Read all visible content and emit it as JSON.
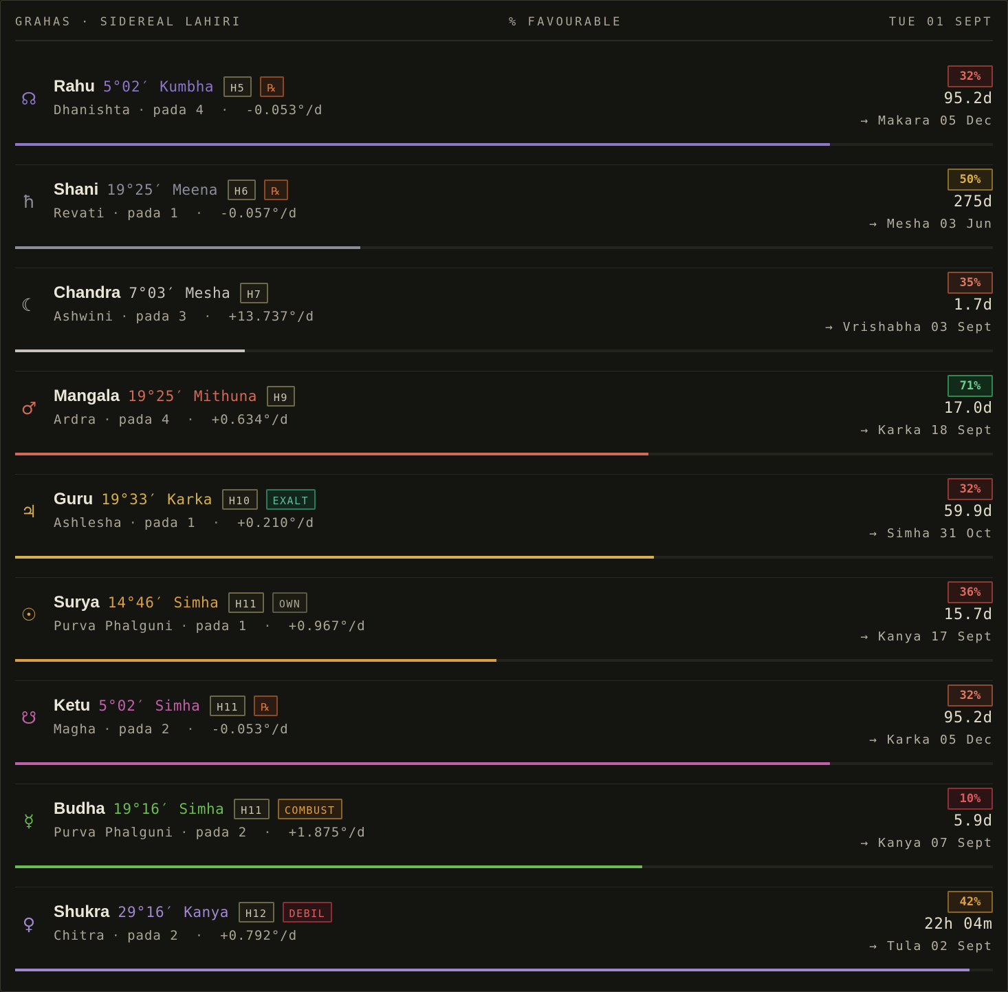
{
  "header": {
    "left": "GRAHAS · SIDEREAL LAHIRI",
    "middle": "% FAVOURABLE",
    "right": "TUE 01 SEPT"
  },
  "grahas": [
    {
      "name": "Rahu",
      "glyph": "☊",
      "color": "#8c76c8",
      "degree": "5°02′",
      "sign": "Kumbha",
      "house": "H5",
      "flag": {
        "label": "℞",
        "color": "#e07a3a",
        "bg": "#2a1c12",
        "border": "#8a4a24"
      },
      "nakshatra": "Dhanishta",
      "pada": "pada 4",
      "speed": "-0.053°/d",
      "pct_label": "32%",
      "pct_color": "#e06a5c",
      "pct_bg": "#2c1614",
      "pct_border": "#8e3a30",
      "duration": "95.2d",
      "next": "→ Makara 05 Dec",
      "progress": 0.833
    },
    {
      "name": "Shani",
      "glyph": "ħ",
      "color": "#8a8d98",
      "degree": "19°25′",
      "sign": "Meena",
      "house": "H6",
      "flag": {
        "label": "℞",
        "color": "#e07a3a",
        "bg": "#2a1c12",
        "border": "#8a4a24"
      },
      "nakshatra": "Revati",
      "pada": "pada 1",
      "speed": "-0.057°/d",
      "pct_label": "50%",
      "pct_color": "#e0b040",
      "pct_bg": "#2a2210",
      "pct_border": "#8a6e22",
      "duration": "275d",
      "next": "→ Mesha 03 Jun",
      "progress": 0.353
    },
    {
      "name": "Chandra",
      "glyph": "☾",
      "color": "#c6c4bc",
      "degree": "7°03′",
      "sign": "Mesha",
      "house": "H7",
      "flag": null,
      "nakshatra": "Ashwini",
      "pada": "pada 3",
      "speed": "+13.737°/d",
      "pct_label": "35%",
      "pct_color": "#e07a5c",
      "pct_bg": "#2c1a14",
      "pct_border": "#8e4a30",
      "duration": "1.7d",
      "next": "→ Vrishabha 03 Sept",
      "progress": 0.235
    },
    {
      "name": "Mangala",
      "glyph": "♂",
      "color": "#d26a56",
      "degree": "19°25′",
      "sign": "Mithuna",
      "house": "H9",
      "flag": null,
      "nakshatra": "Ardra",
      "pada": "pada 4",
      "speed": "+0.634°/d",
      "pct_label": "71%",
      "pct_color": "#6cd08c",
      "pct_bg": "#122a1a",
      "pct_border": "#2e8a4c",
      "duration": "17.0d",
      "next": "→ Karka 18 Sept",
      "progress": 0.648
    },
    {
      "name": "Guru",
      "glyph": "♃",
      "color": "#d6b04a",
      "degree": "19°33′",
      "sign": "Karka",
      "house": "H10",
      "flag": {
        "label": "EXALT",
        "color": "#5cc09a",
        "bg": "#12261e",
        "border": "#2c7a5c"
      },
      "nakshatra": "Ashlesha",
      "pada": "pada 1",
      "speed": "+0.210°/d",
      "pct_label": "32%",
      "pct_color": "#e06a5c",
      "pct_bg": "#2c1614",
      "pct_border": "#8e3a30",
      "duration": "59.9d",
      "next": "→ Simha 31 Oct",
      "progress": 0.653
    },
    {
      "name": "Surya",
      "glyph": "☉",
      "color": "#d8a040",
      "degree": "14°46′",
      "sign": "Simha",
      "house": "H11",
      "flag": {
        "label": "OWN",
        "color": "#a8a690",
        "bg": "#1c1c15",
        "border": "#5a5a44"
      },
      "nakshatra": "Purva Phalguni",
      "pada": "pada 1",
      "speed": "+0.967°/d",
      "pct_label": "36%",
      "pct_color": "#e06a5c",
      "pct_bg": "#2c1614",
      "pct_border": "#8e3a30",
      "duration": "15.7d",
      "next": "→ Kanya 17 Sept",
      "progress": 0.492
    },
    {
      "name": "Ketu",
      "glyph": "☋",
      "color": "#c060a8",
      "degree": "5°02′",
      "sign": "Simha",
      "house": "H11",
      "flag": {
        "label": "℞",
        "color": "#e07a3a",
        "bg": "#2a1c12",
        "border": "#8a4a24"
      },
      "nakshatra": "Magha",
      "pada": "pada 2",
      "speed": "-0.053°/d",
      "pct_label": "32%",
      "pct_color": "#e07a5c",
      "pct_bg": "#2c1a14",
      "pct_border": "#8e4a30",
      "duration": "95.2d",
      "next": "→ Karka 05 Dec",
      "progress": 0.833
    },
    {
      "name": "Budha",
      "glyph": "☿",
      "color": "#6cbc50",
      "degree": "19°16′",
      "sign": "Simha",
      "house": "H11",
      "flag": {
        "label": "COMBUST",
        "color": "#e0a040",
        "bg": "#2a1e10",
        "border": "#8a6424"
      },
      "nakshatra": "Purva Phalguni",
      "pada": "pada 2",
      "speed": "+1.875°/d",
      "pct_label": "10%",
      "pct_color": "#e05a5c",
      "pct_bg": "#2c1416",
      "pct_border": "#8e3034",
      "duration": "5.9d",
      "next": "→ Kanya 07 Sept",
      "progress": 0.641
    },
    {
      "name": "Shukra",
      "glyph": "♀",
      "color": "#a088d0",
      "degree": "29°16′",
      "sign": "Kanya",
      "house": "H12",
      "flag": {
        "label": "DEBIL",
        "color": "#e06060",
        "bg": "#2a1416",
        "border": "#8a3034"
      },
      "nakshatra": "Chitra",
      "pada": "pada 2",
      "speed": "+0.792°/d",
      "pct_label": "42%",
      "pct_color": "#e0a040",
      "pct_bg": "#2a1e10",
      "pct_border": "#8a6424",
      "duration": "22h 04m",
      "next": "→ Tula 02 Sept",
      "progress": 0.976
    }
  ]
}
